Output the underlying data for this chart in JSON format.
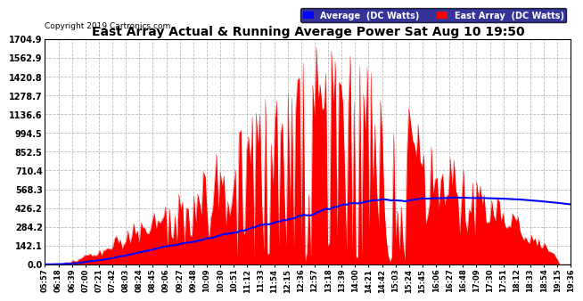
{
  "title": "East Array Actual & Running Average Power Sat Aug 10 19:50",
  "copyright": "Copyright 2019 Cartronics.com",
  "background_color": "#ffffff",
  "plot_bg_color": "#ffffff",
  "grid_color": "#aaaaaa",
  "bar_color": "#ff0000",
  "avg_color": "#0000ff",
  "yticks": [
    0.0,
    142.1,
    284.2,
    426.2,
    568.3,
    710.4,
    852.5,
    994.5,
    1136.6,
    1278.7,
    1420.8,
    1562.9,
    1704.9
  ],
  "ymax": 1704.9,
  "legend_avg_label": "Average  (DC Watts)",
  "legend_east_label": "East Array  (DC Watts)",
  "xtick_labels": [
    "05:57",
    "06:18",
    "06:39",
    "07:00",
    "07:21",
    "07:42",
    "08:03",
    "08:24",
    "08:45",
    "09:06",
    "09:27",
    "09:48",
    "10:09",
    "10:30",
    "10:51",
    "11:12",
    "11:33",
    "11:54",
    "12:15",
    "12:36",
    "12:57",
    "13:18",
    "13:39",
    "14:00",
    "14:21",
    "14:42",
    "15:03",
    "15:24",
    "15:45",
    "16:06",
    "16:27",
    "16:48",
    "17:09",
    "17:30",
    "17:51",
    "18:12",
    "18:33",
    "18:54",
    "19:15",
    "19:36"
  ]
}
